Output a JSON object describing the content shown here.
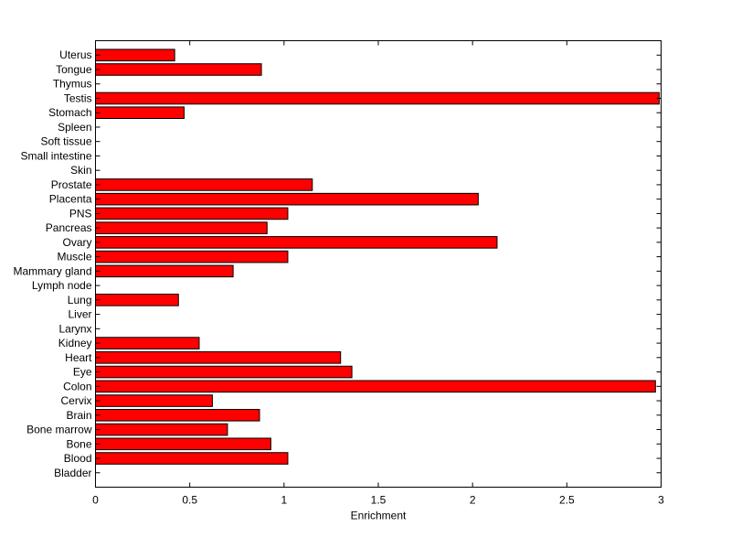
{
  "chart_data": {
    "type": "bar",
    "orientation": "horizontal",
    "categories": [
      "Bladder",
      "Blood",
      "Bone",
      "Bone marrow",
      "Brain",
      "Cervix",
      "Colon",
      "Eye",
      "Heart",
      "Kidney",
      "Larynx",
      "Liver",
      "Lung",
      "Lymph node",
      "Mammary gland",
      "Muscle",
      "Ovary",
      "Pancreas",
      "PNS",
      "Placenta",
      "Prostate",
      "Skin",
      "Small intestine",
      "Soft tissue",
      "Spleen",
      "Stomach",
      "Testis",
      "Thymus",
      "Tongue",
      "Uterus"
    ],
    "values": [
      0,
      1.02,
      0.93,
      0.7,
      0.87,
      0.62,
      2.97,
      1.36,
      1.3,
      0.55,
      0,
      0,
      0.44,
      0,
      0.73,
      1.02,
      2.13,
      0.91,
      1.02,
      2.03,
      1.15,
      0,
      0,
      0,
      0,
      0.47,
      2.99,
      0,
      0.88,
      0.42
    ],
    "title": "",
    "xlabel": "Enrichment",
    "ylabel": "",
    "xlim": [
      0,
      3
    ],
    "xticks": [
      0,
      0.5,
      1,
      1.5,
      2,
      2.5,
      3
    ],
    "xtick_labels": [
      "0",
      "0.5",
      "1",
      "1.5",
      "2",
      "2.5",
      "3"
    ],
    "grid": false,
    "legend": "none",
    "bar_color": "#ff0000",
    "bar_edge_color": "#000000"
  }
}
